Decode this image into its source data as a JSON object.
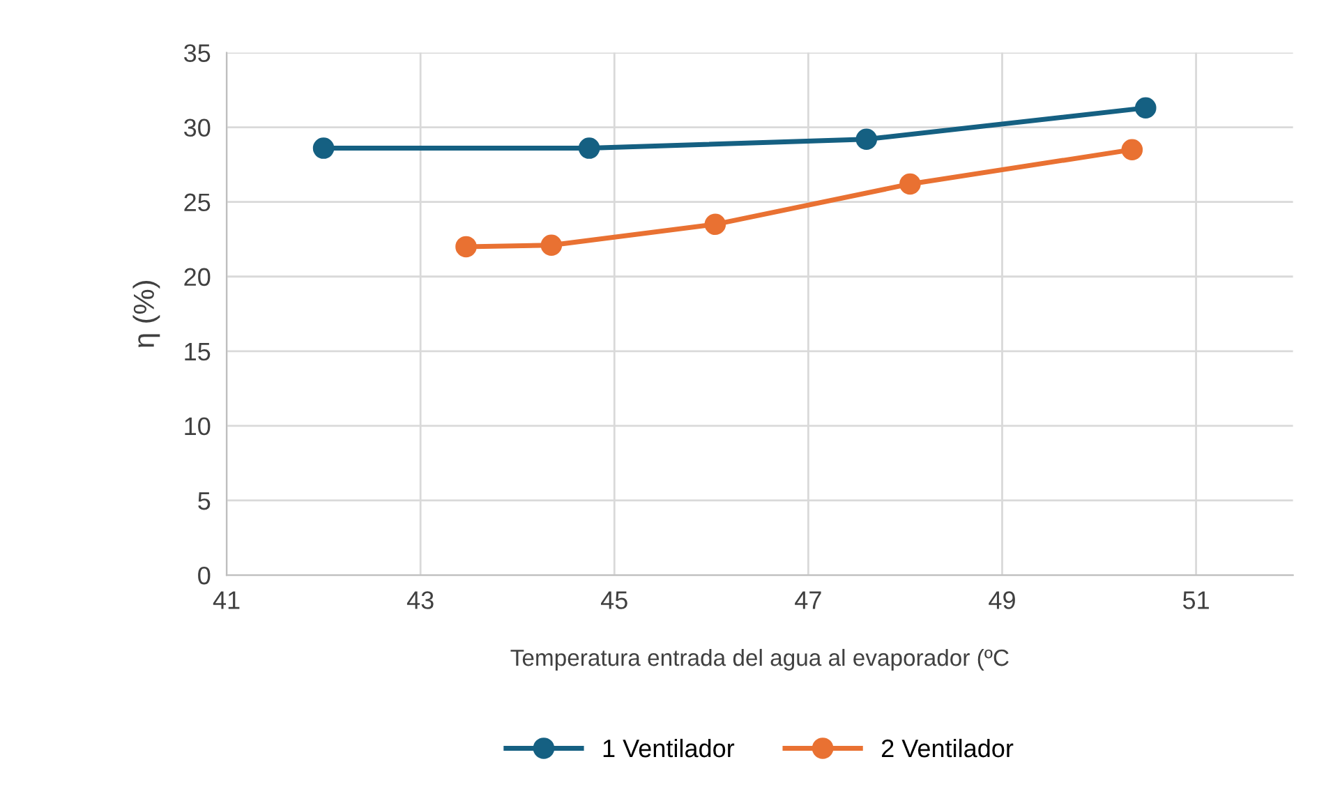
{
  "chart_data": {
    "type": "line",
    "xlabel": "Temperatura entrada del agua al evaporador (ºC",
    "ylabel": "η (%)",
    "series": [
      {
        "name": "1 Ventilador",
        "color": "#156082",
        "x": [
          42.0,
          44.74,
          47.6,
          50.48
        ],
        "values": [
          28.6,
          28.6,
          29.2,
          31.3
        ]
      },
      {
        "name": "2 Ventilador",
        "color": "#e97132",
        "x": [
          43.47,
          44.35,
          46.04,
          48.05,
          50.34
        ],
        "values": [
          22.0,
          22.1,
          23.5,
          26.2,
          28.5
        ]
      }
    ],
    "xlim": [
      41,
      52
    ],
    "xticks": [
      41,
      43,
      45,
      47,
      49,
      51
    ],
    "ylim": [
      0,
      35
    ],
    "yticks": [
      0,
      5,
      10,
      15,
      20,
      25,
      30,
      35
    ],
    "grid": true,
    "legend": "bottom",
    "marker": "circle",
    "line_style": "solid"
  }
}
